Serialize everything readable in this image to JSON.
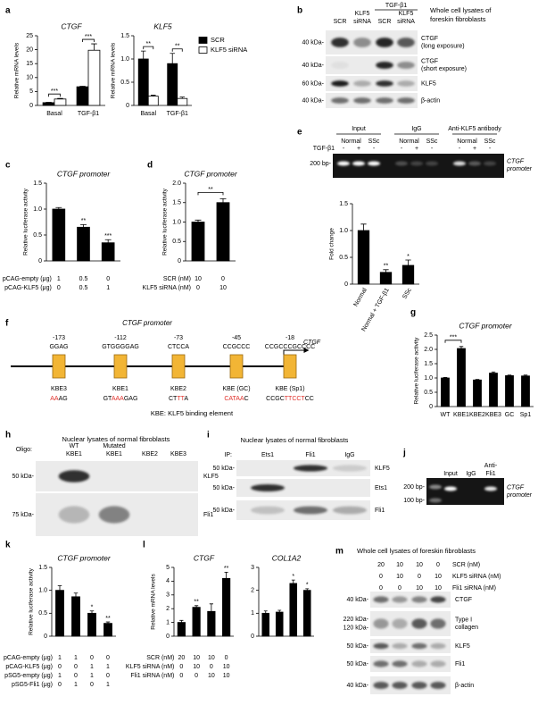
{
  "panel_letters": [
    "a",
    "b",
    "c",
    "d",
    "e",
    "f",
    "g",
    "h",
    "i",
    "j",
    "k",
    "l",
    "m"
  ],
  "chart_data": [
    {
      "type": "bar",
      "title": "CTGF",
      "ylabel": "Relative mRNA levels",
      "categories": [
        "Basal",
        "TGF-β1"
      ],
      "series": [
        {
          "color": "#000000",
          "values": [
            1,
            6.7
          ],
          "errors": [
            0.1,
            0.2
          ]
        },
        {
          "color": "#ffffff",
          "values": [
            2.3,
            19.8
          ],
          "errors": [
            0.2,
            2.3
          ]
        }
      ],
      "significance": [
        "***",
        "***"
      ],
      "ylim": [
        0,
        25
      ],
      "yticks": [
        0,
        5,
        10,
        15,
        20,
        25
      ]
    },
    {
      "type": "bar",
      "title": "KLF5",
      "ylabel": "Relative mRNA levels",
      "categories": [
        "Basal",
        "TGF-β1"
      ],
      "series": [
        {
          "name": "SCR",
          "color": "#000000",
          "values": [
            1,
            0.9
          ],
          "errors": [
            0.17,
            0.22
          ]
        },
        {
          "name": "KLF5 siRNA",
          "color": "#ffffff",
          "values": [
            0.2,
            0.15
          ],
          "errors": [
            0.02,
            0.03
          ]
        }
      ],
      "significance": [
        "**",
        "**"
      ],
      "ylim": [
        0,
        1.5
      ],
      "yticks": [
        0,
        0.5,
        {
          "value": 1,
          "label": "1.0"
        },
        1.5
      ],
      "legend": "right"
    },
    {
      "type": "bar",
      "title": "CTGF promoter",
      "ylabel": "Relative luciferase activity",
      "color": "#000000",
      "values": [
        1,
        0.65,
        0.35
      ],
      "errors": [
        0.03,
        0.05,
        0.06
      ],
      "significance": [
        null,
        "**",
        "***"
      ],
      "ylim": [
        0,
        1.5
      ],
      "yticks": [
        0,
        0.5,
        {
          "value": 1,
          "label": "1.0"
        },
        1.5
      ],
      "conditions": [
        {
          "label": "pCAG-empty (μg)",
          "values": [
            1,
            0.5,
            0
          ]
        },
        {
          "label": "pCAG-KLF5 (μg)",
          "values": [
            0,
            0.5,
            1
          ]
        }
      ]
    },
    {
      "type": "bar",
      "title": "CTGF promoter",
      "ylabel": "Relative luciferase activity",
      "color": "#000000",
      "values": [
        1,
        1.5
      ],
      "errors": [
        0.05,
        0.1
      ],
      "brackets": [
        "**"
      ],
      "ylim": [
        0,
        2
      ],
      "yticks": [
        0,
        0.5,
        {
          "value": 1,
          "label": "1.0"
        },
        1.5,
        {
          "value": 2,
          "label": "2.0"
        }
      ],
      "conditions": [
        {
          "label": "SCR (nM)",
          "values": [
            10,
            0
          ]
        },
        {
          "label": "KLF5 siRNA (nM)",
          "values": [
            0,
            10
          ]
        }
      ]
    },
    {
      "type": "bar",
      "ylabel": "Fold change",
      "color": "#000000",
      "categories": [
        "Normal",
        "Normal + TGF-β1",
        "SSc"
      ],
      "values": [
        1,
        0.22,
        0.35
      ],
      "errors": [
        0.12,
        0.05,
        0.1
      ],
      "significance": [
        null,
        "**",
        "*"
      ],
      "ylim": [
        0,
        1.5
      ],
      "yticks": [
        0,
        0.5,
        {
          "value": 1,
          "label": "1.0"
        },
        1.5
      ]
    },
    {
      "type": "bar",
      "title": "CTGF promoter",
      "ylabel": "Relative luciferase activity",
      "color": "#000000",
      "categories": [
        "WT",
        "KBE1",
        "KBE2",
        "KBE3",
        "GC",
        "Sp1"
      ],
      "values": [
        1,
        2.03,
        0.93,
        1.17,
        1.08,
        1.07
      ],
      "errors": [
        0.02,
        0.07,
        0.02,
        0.04,
        0.02,
        0.03
      ],
      "brackets": [
        "***"
      ],
      "ylim": [
        0,
        2.5
      ],
      "yticks": [
        0,
        0.5,
        {
          "value": 1,
          "label": "1.0"
        },
        1.5,
        {
          "value": 2,
          "label": "2.0"
        },
        2.5
      ]
    },
    {
      "type": "bar",
      "title": "CTGF promoter",
      "ylabel": "Relative luciferase activity",
      "color": "#000000",
      "values": [
        1,
        0.86,
        0.5,
        0.28
      ],
      "errors": [
        0.1,
        0.08,
        0.05,
        0.03
      ],
      "significance": [
        null,
        null,
        "*",
        "**"
      ],
      "ylim": [
        0,
        1.5
      ],
      "yticks": [
        0,
        0.5,
        {
          "value": 1,
          "label": "1.0"
        },
        1.5
      ],
      "conditions": [
        {
          "label": "pCAG-empty (μg)",
          "values": [
            1,
            1,
            0,
            0
          ]
        },
        {
          "label": "pCAG-KLF5 (μg)",
          "values": [
            0,
            0,
            1,
            1
          ]
        },
        {
          "label": "pSG5-empty (μg)",
          "values": [
            1,
            0,
            1,
            0
          ]
        },
        {
          "label": "pSG5-Fli1 (μg)",
          "values": [
            0,
            1,
            0,
            1
          ]
        }
      ]
    },
    {
      "type": "bar",
      "title": "CTGF",
      "ylabel": "Relative mRNA levels",
      "color": "#000000",
      "values": [
        1,
        2.1,
        1.8,
        4.2
      ],
      "errors": [
        0.15,
        0.12,
        0.55,
        0.45
      ],
      "significance": [
        null,
        "**",
        null,
        "**"
      ],
      "ylim": [
        0,
        5
      ],
      "yticks": [
        0,
        1,
        2,
        3,
        4,
        5
      ],
      "conditions": [
        {
          "label": "SCR (nM)",
          "values": [
            20,
            10,
            10,
            0
          ]
        },
        {
          "label": "KLF5 siRNA (nM)",
          "values": [
            0,
            10,
            0,
            10
          ]
        },
        {
          "label": "Fli1 siRNA (nM)",
          "values": [
            0,
            0,
            10,
            10
          ]
        }
      ]
    },
    {
      "type": "bar",
      "title": "COL1A2",
      "color": "#000000",
      "values": [
        1,
        1.05,
        2.3,
        2
      ],
      "errors": [
        0.1,
        0.08,
        0.15,
        0.07
      ],
      "significance": [
        null,
        null,
        "*",
        "*"
      ],
      "ylim": [
        0,
        3
      ],
      "yticks": [
        0,
        1,
        2,
        3
      ]
    }
  ],
  "blots": {
    "b": {
      "title": [
        "Whole cell lysates of",
        "foreskin fibroblasts"
      ],
      "header": "TGF-β1",
      "lanes": [
        [
          "SCR"
        ],
        [
          "KLF5",
          "siRNA"
        ],
        [
          "SCR"
        ],
        [
          "KLF5",
          "siRNA"
        ]
      ],
      "rows": [
        {
          "marker": [
            "40 kDa-"
          ],
          "label": [
            "CTGF",
            "(long exposure)"
          ]
        },
        {
          "marker": [
            "40 kDa-"
          ],
          "label": [
            "CTGF",
            "(short exposure)"
          ]
        },
        {
          "marker": [
            "60 kDa-"
          ],
          "label": [
            "KLF5"
          ]
        },
        {
          "marker": [
            "40 kDa-"
          ],
          "label": [
            "β-actin"
          ]
        }
      ]
    },
    "h": {
      "title": [
        "Nuclear lysates of normal fibroblasts"
      ],
      "lane_heading": "Oligo:",
      "lanes": [
        [
          "WT",
          "KBE1"
        ],
        [
          "Mutated",
          "KBE1"
        ],
        [
          "KBE2"
        ],
        [
          "KBE3"
        ]
      ],
      "rows": [
        {
          "marker": [
            "50 kDa-"
          ],
          "label": [
            "KLF5"
          ]
        },
        {
          "marker": [
            "75 kDa-"
          ],
          "label": [
            "Fli1"
          ]
        }
      ]
    },
    "i": {
      "title": [
        "Nuclear lysates of normal fibroblasts"
      ],
      "lane_heading": "IP:",
      "lanes": [
        [
          "Ets1"
        ],
        [
          "Fli1"
        ],
        [
          "IgG"
        ]
      ],
      "rows": [
        {
          "marker": [
            "50 kDa-"
          ],
          "label": [
            "KLF5"
          ]
        },
        {
          "marker": [
            "50 kDa-"
          ],
          "label": [
            "Ets1"
          ]
        },
        {
          "marker": [
            "50 kDa-"
          ],
          "label": [
            "Fli1"
          ]
        }
      ]
    },
    "m": {
      "title": [
        "Whole cell lysates of foreskin fibroblasts"
      ],
      "conditions": [
        {
          "label": "SCR (nM)",
          "values": [
            20,
            10,
            10,
            0
          ]
        },
        {
          "label": "KLF5 siRNA (nM)",
          "values": [
            0,
            10,
            0,
            10
          ]
        },
        {
          "label": "Fli1 siRNA (nM)",
          "values": [
            0,
            0,
            10,
            10
          ]
        }
      ],
      "rows": [
        {
          "marker": [
            "40 kDa-"
          ],
          "label": [
            "CTGF"
          ]
        },
        {
          "marker": [
            "220 kDa-",
            "120 kDa-"
          ],
          "label": [
            "Type I",
            "collagen"
          ]
        },
        {
          "marker": [
            "50 kDa-"
          ],
          "label": [
            "KLF5"
          ]
        },
        {
          "marker": [
            "50 kDa-"
          ],
          "label": [
            "Fli1"
          ]
        },
        {
          "marker": [
            "40 kDa-"
          ],
          "label": [
            "β-actin"
          ]
        }
      ]
    }
  },
  "gels": {
    "e": {
      "headers": [
        "Input",
        "IgG",
        "Anti-KLF5 antibody"
      ],
      "groups": [
        "Normal",
        "SSc",
        "Normal",
        "SSc",
        "Normal",
        "SSc"
      ],
      "treatment_label": "TGF-β1",
      "treatment": [
        "-",
        "+",
        "-",
        "-",
        "+",
        "-",
        "-",
        "+",
        "-"
      ],
      "markers": [
        "200 bp-"
      ],
      "label": [
        "CTGF",
        "promoter"
      ]
    },
    "j": {
      "lanes": [
        [
          "Input"
        ],
        [
          "IgG"
        ],
        [
          "Anti-",
          "Fli1"
        ]
      ],
      "markers": [
        "200 bp-",
        "100 bp-"
      ],
      "label": [
        "CTGF",
        "promoter"
      ]
    }
  },
  "diagram_f": {
    "title": "CTGF promoter",
    "gene": "CTGF",
    "sites": [
      {
        "position": "-173",
        "sequence": "GGAG",
        "name": "KBE3",
        "mutant": [
          {
            "text": "AA",
            "color": "#e0302a"
          },
          {
            "text": "AG",
            "color": "#000000"
          }
        ]
      },
      {
        "position": "-112",
        "sequence": "GTGGGGAG",
        "name": "KBE1",
        "mutant": [
          {
            "text": "GT",
            "color": "#000000"
          },
          {
            "text": "AAA",
            "color": "#e0302a"
          },
          {
            "text": "GAG",
            "color": "#000000"
          }
        ]
      },
      {
        "position": "-73",
        "sequence": "CTCCA",
        "name": "KBE2",
        "mutant": [
          {
            "text": "CT",
            "color": "#000000"
          },
          {
            "text": "TT",
            "color": "#e0302a"
          },
          {
            "text": "A",
            "color": "#000000"
          }
        ]
      },
      {
        "position": "-45",
        "sequence": "CCGCCC",
        "name": "KBE (GC)",
        "mutant": [
          {
            "text": "CATAA",
            "color": "#e0302a"
          },
          {
            "text": "C",
            "color": "#000000"
          }
        ]
      },
      {
        "position": "-18",
        "sequence": "CCGCCCGCCCC",
        "name": "KBE (Sp1)",
        "mutant": [
          {
            "text": "CCGC",
            "color": "#000000"
          },
          {
            "text": "TTCCT",
            "color": "#e0302a"
          },
          {
            "text": "CC",
            "color": "#000000"
          }
        ]
      }
    ],
    "footnote": "KBE: KLF5 binding element"
  }
}
